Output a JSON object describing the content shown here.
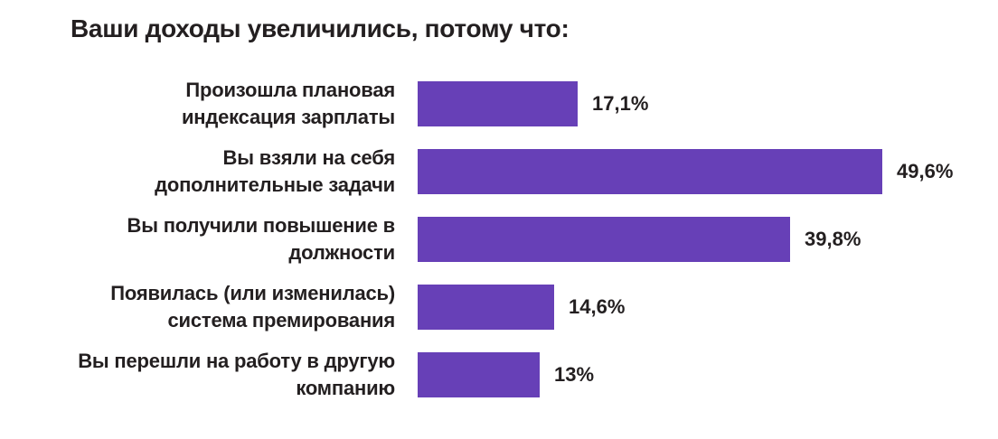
{
  "title": "Ваши доходы увеличились, потому что:",
  "colors": {
    "bar": "#6740B7",
    "text": "#231F20",
    "background": "#FFFFFF"
  },
  "chart_data": {
    "type": "bar",
    "orientation": "horizontal",
    "title": "Ваши доходы увеличились, потому что:",
    "xlabel": "",
    "ylabel": "",
    "unit": "%",
    "xlim": [
      0,
      55
    ],
    "grid": false,
    "legend": null,
    "value_label_position": "end-of-bar",
    "categories": [
      "Произошла плановая\nиндексация зарплаты",
      "Вы взяли на себя\nдополнительные задачи",
      "Вы получили повышение в\nдолжности",
      "Появилась (или изменилась)\nсистема премирования",
      "Вы перешли на работу в другую\nкомпанию"
    ],
    "values": [
      17.1,
      49.6,
      39.8,
      14.6,
      13
    ],
    "value_labels": [
      "17,1%",
      "49,6%",
      "39,8%",
      "14,6%",
      "13%"
    ]
  }
}
